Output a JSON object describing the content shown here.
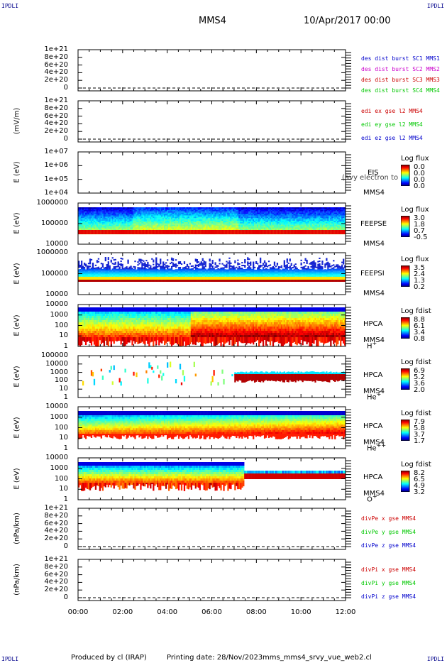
{
  "header": {
    "corner_label": "IPDLI",
    "title": "MMS4",
    "date": "10/Apr/2017 00:00"
  },
  "footer": {
    "produced": "Produced by cl (IRAP)",
    "printing": "Printing date: 28/Nov/2023",
    "script": "mms_mms4_srvy_vue_web2.cl"
  },
  "x_axis": {
    "ticks": [
      "00:00",
      "02:00",
      "04:00",
      "06:00",
      "08:00",
      "10:00",
      "12:00"
    ]
  },
  "colors": {
    "red": "#cc0000",
    "green": "#00c800",
    "blue": "#0000cc",
    "magenta": "#cc00cc"
  },
  "panels": [
    {
      "id": "des",
      "ylabel": "",
      "yticks": [
        "1e+21",
        "8e+20",
        "6e+20",
        "4e+20",
        "2e+20",
        "0"
      ],
      "legend": [
        {
          "text": "des dist burst SC1 MMS1",
          "color": "#0000cc"
        },
        {
          "text": "des dist burst SC2 MMS2",
          "color": "#cc00cc"
        },
        {
          "text": "des dist burst SC3 MMS3",
          "color": "#cc0000"
        },
        {
          "text": "des dist burst SC4 MMS4",
          "color": "#00c800"
        }
      ]
    },
    {
      "id": "edi",
      "ylabel": "(mV/m)",
      "yticks": [
        "1e+21",
        "8e+20",
        "6e+20",
        "4e+20",
        "2e+20",
        "0"
      ],
      "legend": [
        {
          "text": "edi ex gse l2 MMS4",
          "color": "#cc0000"
        },
        {
          "text": "edi ey gse l2 MMS4",
          "color": "#00c800"
        },
        {
          "text": "edi ez gse l2 MMS4",
          "color": "#0000cc"
        }
      ]
    },
    {
      "id": "eis",
      "ylabel": "E (eV)",
      "yticks": [
        "1e+07",
        "1e+06",
        "1e+05",
        "1e+04"
      ],
      "side": [
        "EIS",
        "MMS4"
      ],
      "overlay": "(avy electron to",
      "colorbar": {
        "title": "Log flux",
        "ticks": [
          "0.0",
          "0.0",
          "0.0",
          "0.0"
        ]
      }
    },
    {
      "id": "feepse",
      "ylabel": "E (eV)",
      "yticks": [
        "1000000",
        "100000",
        "10000"
      ],
      "side": [
        "FEEPSE",
        "MMS4"
      ],
      "colorbar": {
        "title": "Log flux",
        "ticks": [
          "3.0",
          "1.8",
          "0.7",
          "-0.5"
        ]
      }
    },
    {
      "id": "feepsi",
      "ylabel": "E (eV)",
      "yticks": [
        "1000000",
        "100000",
        "10000"
      ],
      "side": [
        "FEEPSI",
        "MMS4"
      ],
      "colorbar": {
        "title": "Log flux",
        "ticks": [
          "3.5",
          "2.4",
          "1.3",
          "0.2"
        ]
      }
    },
    {
      "id": "hpca_h",
      "ylabel": "E (eV)",
      "yticks": [
        "10000",
        "1000",
        "100",
        "10",
        "1"
      ],
      "side": [
        "HPCA",
        "MMS4"
      ],
      "species": {
        "base": "H",
        "sup": "+"
      },
      "colorbar": {
        "title": "Log fdist",
        "ticks": [
          "8.8",
          "6.1",
          "3.4",
          "0.8"
        ]
      }
    },
    {
      "id": "hpca_he",
      "ylabel": "E (eV)",
      "yticks": [
        "100000",
        "10000",
        "1000",
        "100",
        "10",
        "1"
      ],
      "side": [
        "HPCA",
        "MMS4"
      ],
      "species": {
        "base": "He",
        "sup": "+"
      },
      "colorbar": {
        "title": "Log fdist",
        "ticks": [
          "6.9",
          "5.2",
          "3.6",
          "2.0"
        ]
      }
    },
    {
      "id": "hpca_hepp",
      "ylabel": "E (eV)",
      "yticks": [
        "10000",
        "1000",
        "100",
        "10",
        "1"
      ],
      "side": [
        "HPCA",
        "MMS4"
      ],
      "species": {
        "base": "He",
        "sup": "++"
      },
      "colorbar": {
        "title": "Log fdist",
        "ticks": [
          "7.9",
          "5.8",
          "3.7",
          "1.7"
        ]
      }
    },
    {
      "id": "hpca_o",
      "ylabel": "E (eV)",
      "yticks": [
        "10000",
        "1000",
        "100",
        "10",
        "1"
      ],
      "side": [
        "HPCA",
        "MMS4"
      ],
      "species": {
        "base": "O",
        "sup": "+"
      },
      "colorbar": {
        "title": "Log fdist",
        "ticks": [
          "8.2",
          "6.5",
          "4.9",
          "3.2"
        ]
      }
    },
    {
      "id": "divpe",
      "ylabel": "(nPa/km)",
      "yticks": [
        "1e+21",
        "8e+20",
        "6e+20",
        "4e+20",
        "2e+20",
        "0"
      ],
      "legend": [
        {
          "text": "divPe x gse MMS4",
          "color": "#cc0000"
        },
        {
          "text": "divPe y gse MMS4",
          "color": "#00c800"
        },
        {
          "text": "divPe z gse MMS4",
          "color": "#0000cc"
        }
      ]
    },
    {
      "id": "divpi",
      "ylabel": "(nPa/km)",
      "yticks": [
        "1e+21",
        "8e+20",
        "6e+20",
        "4e+20",
        "2e+20",
        "0"
      ],
      "legend": [
        {
          "text": "divPi x gse MMS4",
          "color": "#cc0000"
        },
        {
          "text": "divPi y gse MMS4",
          "color": "#00c800"
        },
        {
          "text": "divPi z gse MMS4",
          "color": "#0000cc"
        }
      ]
    }
  ],
  "chart_data": {
    "type": "heatmap",
    "title": "MMS4",
    "x_range": [
      "00:00",
      "12:00"
    ],
    "x_ticks": [
      "00:00",
      "02:00",
      "04:00",
      "06:00",
      "08:00",
      "10:00",
      "12:00"
    ],
    "panels": [
      {
        "name": "des dist burst",
        "type": "line",
        "ylim": [
          0,
          1e+21
        ],
        "series": []
      },
      {
        "name": "edi e gse l2 MMS4",
        "type": "line",
        "ylabel": "(mV/m)",
        "ylim": [
          0,
          1e+21
        ],
        "series": []
      },
      {
        "name": "EIS MMS4",
        "type": "heatmap",
        "ylabel": "E (eV)",
        "ylim": [
          10000.0,
          10000000.0
        ],
        "log": true,
        "colorbar": [
          0.0,
          0.0,
          0.0,
          0.0
        ]
      },
      {
        "name": "FEEPSE MMS4",
        "type": "heatmap",
        "ylabel": "E (eV)",
        "ylim": [
          10000.0,
          1000000.0
        ],
        "log": true,
        "colorbar": [
          3.0,
          1.8,
          0.7,
          -0.5
        ]
      },
      {
        "name": "FEEPSI MMS4",
        "type": "heatmap",
        "ylabel": "E (eV)",
        "ylim": [
          10000.0,
          1000000.0
        ],
        "log": true,
        "colorbar": [
          3.5,
          2.4,
          1.3,
          0.2
        ]
      },
      {
        "name": "HPCA MMS4 H+",
        "type": "heatmap",
        "ylabel": "E (eV)",
        "ylim": [
          1,
          10000.0
        ],
        "log": true,
        "colorbar": [
          8.8,
          6.1,
          3.4,
          0.8
        ]
      },
      {
        "name": "HPCA MMS4 He+",
        "type": "heatmap",
        "ylabel": "E (eV)",
        "ylim": [
          1,
          100000.0
        ],
        "log": true,
        "colorbar": [
          6.9,
          5.2,
          3.6,
          2.0
        ]
      },
      {
        "name": "HPCA MMS4 He++",
        "type": "heatmap",
        "ylabel": "E (eV)",
        "ylim": [
          1,
          10000.0
        ],
        "log": true,
        "colorbar": [
          7.9,
          5.8,
          3.7,
          1.7
        ]
      },
      {
        "name": "HPCA MMS4 O+",
        "type": "heatmap",
        "ylabel": "E (eV)",
        "ylim": [
          1,
          10000.0
        ],
        "log": true,
        "colorbar": [
          8.2,
          6.5,
          4.9,
          3.2
        ]
      },
      {
        "name": "divPe gse MMS4",
        "type": "line",
        "ylabel": "(nPa/km)",
        "ylim": [
          0,
          1e+21
        ],
        "series": []
      },
      {
        "name": "divPi gse MMS4",
        "type": "line",
        "ylabel": "(nPa/km)",
        "ylim": [
          0,
          1e+21
        ],
        "series": []
      }
    ]
  }
}
